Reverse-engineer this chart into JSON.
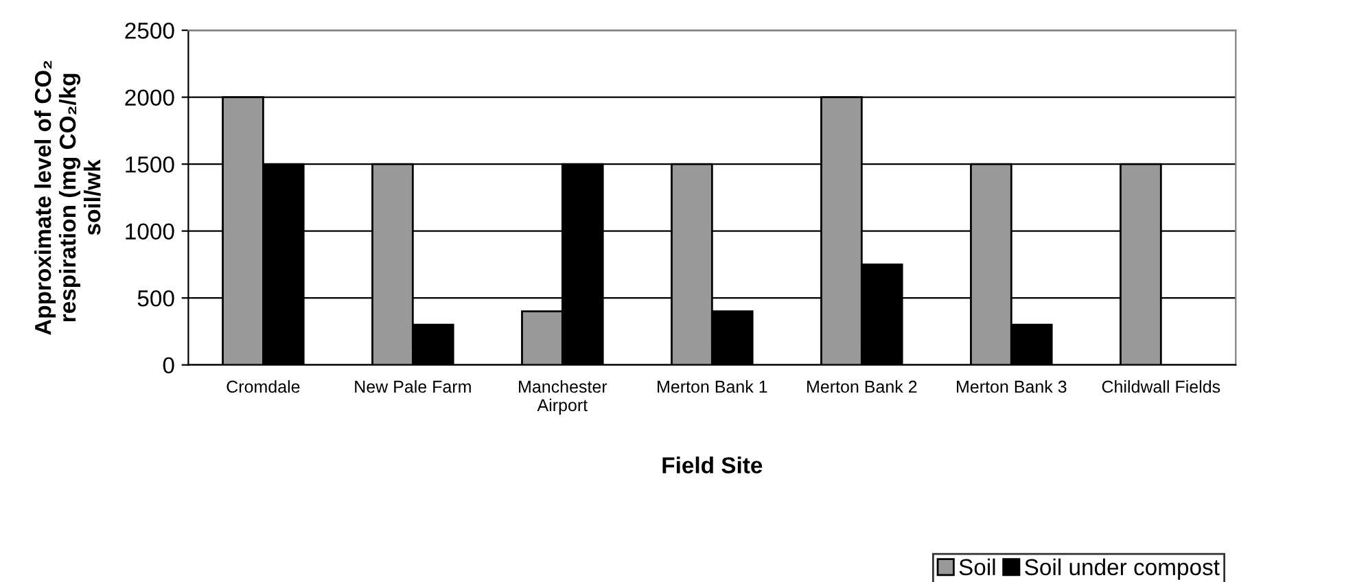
{
  "chart_data": {
    "type": "bar",
    "xlabel": "Field Site",
    "ylabel": "Approximate level of CO₂\nrespiration (mg CO₂/kg\nsoil/wk",
    "categories": [
      "Cromdale",
      "New Pale Farm",
      "Manchester\nAirport",
      "Merton Bank 1",
      "Merton Bank 2",
      "Merton Bank 3",
      "Childwall Fields"
    ],
    "series": [
      {
        "name": "Soil",
        "color": "#999999",
        "values": [
          2000,
          1500,
          400,
          1500,
          2000,
          1500,
          1500
        ]
      },
      {
        "name": "Soil under compost",
        "color": "#000000",
        "values": [
          1500,
          300,
          1500,
          400,
          750,
          300,
          null
        ]
      }
    ],
    "ylim": [
      0,
      2500
    ],
    "yticks": [
      0,
      500,
      1000,
      1500,
      2000,
      2500
    ],
    "grid": "y",
    "legend": "bottom right"
  }
}
